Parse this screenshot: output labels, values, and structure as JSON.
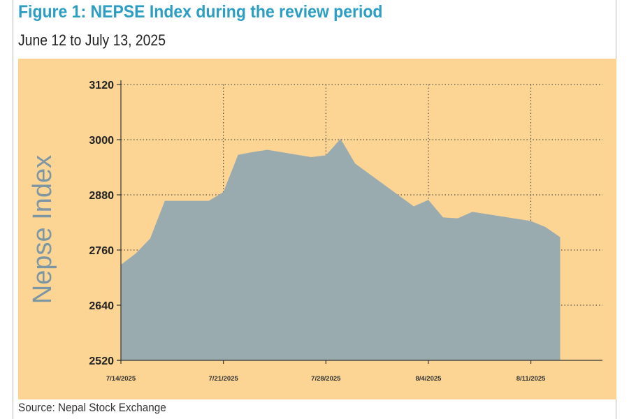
{
  "figure": {
    "title": "Figure 1: NEPSE Index during the review period",
    "subtitle": "June 12 to July 13, 2025",
    "source": "Source: Nepal Stock Exchange"
  },
  "colors": {
    "title": "#2b9ec3",
    "panel_background": "#fcd594",
    "area_fill": "#9aabb0",
    "axis": "#333333",
    "grid": "#333333",
    "ylabel": "#7c97a3"
  },
  "chart_data": {
    "type": "area",
    "ylabel": "Nepse Index",
    "xlabel": "",
    "ylim": [
      2520,
      3120
    ],
    "yticks": [
      2520,
      2640,
      2760,
      2880,
      3000,
      3120
    ],
    "xticks": [
      "7/14/2025",
      "7/21/2025",
      "7/28/2025",
      "8/4/2025",
      "8/11/2025"
    ],
    "grid": true,
    "series": [
      {
        "values": [
          {
            "x": "7/14/2025",
            "y": 2728
          },
          {
            "x": "7/15/2025",
            "y": 2752
          },
          {
            "x": "7/16/2025",
            "y": 2785
          },
          {
            "x": "7/17/2025",
            "y": 2867
          },
          {
            "x": "7/20/2025",
            "y": 2867
          },
          {
            "x": "7/21/2025",
            "y": 2886
          },
          {
            "x": "7/22/2025",
            "y": 2967
          },
          {
            "x": "7/23/2025",
            "y": 2973
          },
          {
            "x": "7/24/2025",
            "y": 2978
          },
          {
            "x": "7/27/2025",
            "y": 2962
          },
          {
            "x": "7/28/2025",
            "y": 2966
          },
          {
            "x": "7/29/2025",
            "y": 3002
          },
          {
            "x": "7/30/2025",
            "y": 2948
          },
          {
            "x": "8/3/2025",
            "y": 2855
          },
          {
            "x": "8/4/2025",
            "y": 2869
          },
          {
            "x": "8/5/2025",
            "y": 2831
          },
          {
            "x": "8/6/2025",
            "y": 2829
          },
          {
            "x": "8/7/2025",
            "y": 2843
          },
          {
            "x": "8/8/2025",
            "y": 2838
          },
          {
            "x": "8/11/2025",
            "y": 2823
          },
          {
            "x": "8/12/2025",
            "y": 2810
          },
          {
            "x": "8/13/2025",
            "y": 2788
          }
        ]
      }
    ]
  }
}
